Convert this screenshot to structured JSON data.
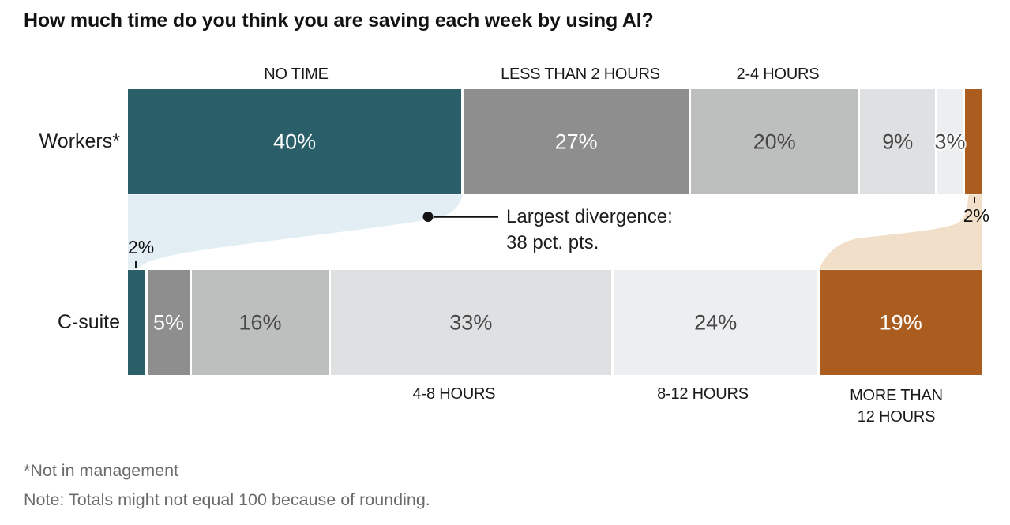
{
  "title": "How much time do you think you are saving each week by using AI?",
  "row_labels": {
    "workers": "Workers*",
    "csuite": "C-suite"
  },
  "category_labels": {
    "top": [
      "NO TIME",
      "LESS THAN 2 HOURS",
      "2-4 HOURS"
    ],
    "bottom": [
      "4-8 HOURS",
      "8-12 HOURS",
      "MORE THAN 12 HOURS"
    ]
  },
  "annotation": {
    "line1": "Largest divergence:",
    "line2": "38 pct. pts."
  },
  "outside_labels": {
    "workers_more_than_12": "2%",
    "csuite_no_time": "2%"
  },
  "footnotes": {
    "line1": "*Not in management",
    "line2": "Note: Totals might not equal 100 because of rounding."
  },
  "colors": {
    "no_time": "#2a5f6a",
    "less_than_2_hours": "#8e8e8e",
    "hours_2_4": "#bdbebe",
    "hours_4_8": "#dfe0e2",
    "hours_8_12": "#eceef0",
    "more_than_12": "#ab5d1f",
    "flow_blue": "#e3eef4",
    "flow_peach": "#f2dfc9",
    "label_light": "#ffffff",
    "label_dark": "#474747"
  },
  "chart_data": {
    "type": "bar",
    "subtype": "horizontal-stacked-divergence",
    "title": "How much time do you think you are saving each week by using AI?",
    "unit": "%",
    "categories": [
      "NO TIME",
      "LESS THAN 2 HOURS",
      "2-4 HOURS",
      "4-8 HOURS",
      "8-12 HOURS",
      "MORE THAN 12 HOURS"
    ],
    "series": [
      {
        "name": "Workers*",
        "values": [
          40,
          27,
          20,
          9,
          3,
          2
        ],
        "labels": [
          "40%",
          "27%",
          "20%",
          "9%",
          "3%",
          "2%"
        ],
        "outside_label_indices": [
          5
        ]
      },
      {
        "name": "C-suite",
        "values": [
          2,
          5,
          16,
          33,
          24,
          19
        ],
        "labels": [
          "2%",
          "5%",
          "16%",
          "33%",
          "24%",
          "19%"
        ],
        "outside_label_indices": [
          0
        ]
      }
    ],
    "annotation": "Largest divergence: 38 pct. pts.",
    "annotation_points_to": "gap between Workers 40% and C-suite 2% in NO TIME",
    "legend_position": "labels above first three categories, below last three",
    "notes": [
      "*Not in management",
      "Note: Totals might not equal 100 because of rounding."
    ]
  }
}
